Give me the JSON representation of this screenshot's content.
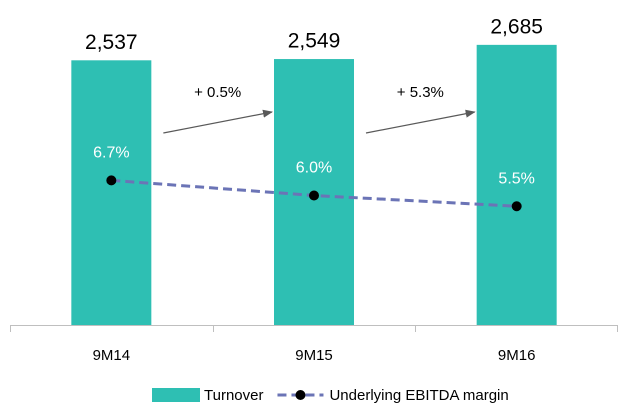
{
  "chart_data": {
    "type": "bar",
    "categories": [
      "9M14",
      "9M15",
      "9M16"
    ],
    "series": [
      {
        "name": "Turnover",
        "type": "bar",
        "color": "#2ebfb3",
        "values": [
          2537,
          2549,
          2685
        ],
        "value_labels": [
          "2,537",
          "2,549",
          "2,685"
        ]
      },
      {
        "name": "Underlying EBITDA margin",
        "type": "line",
        "axis": "y2",
        "color": "#6b74b6",
        "marker_color": "#000000",
        "values": [
          6.7,
          6.0,
          5.5
        ],
        "value_labels": [
          "6.7%",
          "6.0%",
          "5.5%"
        ]
      }
    ],
    "annotations": [
      "+ 0.5%",
      "+ 5.3%"
    ],
    "ylim": [
      0,
      3000
    ],
    "y2lim": [
      0,
      14.5
    ],
    "legend": "bottom"
  }
}
